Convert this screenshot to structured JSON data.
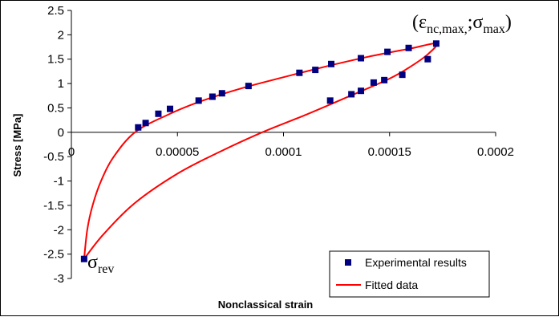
{
  "chart_data": {
    "type": "scatter",
    "xlabel": "Nonclassical strain",
    "ylabel": "Stress [MPa]",
    "xlim": [
      0,
      0.0002
    ],
    "ylim": [
      -3,
      2.5
    ],
    "x_ticks": [
      "0",
      "0.00005",
      "0.0001",
      "0.00015",
      "0.0002"
    ],
    "y_ticks": [
      "2.5",
      "2",
      "1.5",
      "1",
      "0.5",
      "0",
      "-0.5",
      "-1",
      "-1.5",
      "-2",
      "-2.5",
      "-3"
    ],
    "grid": false,
    "legend": "bottom-right",
    "colors": {
      "experimental": "#000080",
      "fitted": "#ff0000"
    },
    "series": [
      {
        "name": "Experimental results",
        "kind": "scatter",
        "points": [
          [
            3.15e-05,
            0.1
          ],
          [
            3.5e-05,
            0.19
          ],
          [
            4.1e-05,
            0.38
          ],
          [
            4.65e-05,
            0.48
          ],
          [
            6e-05,
            0.65
          ],
          [
            6.65e-05,
            0.73
          ],
          [
            7.1e-05,
            0.8
          ],
          [
            8.35e-05,
            0.95
          ],
          [
            0.0001075,
            1.22
          ],
          [
            0.000115,
            1.28
          ],
          [
            0.0001225,
            1.4
          ],
          [
            0.0001365,
            1.52
          ],
          [
            0.000149,
            1.65
          ],
          [
            0.000159,
            1.73
          ],
          [
            0.000172,
            1.82
          ],
          [
            0.000168,
            1.5
          ],
          [
            0.000156,
            1.18
          ],
          [
            0.0001475,
            1.07
          ],
          [
            0.0001425,
            1.02
          ],
          [
            0.0001365,
            0.85
          ],
          [
            0.000132,
            0.78
          ],
          [
            0.000122,
            0.65
          ],
          [
            6e-06,
            -2.6
          ]
        ]
      },
      {
        "name": "Fitted data",
        "kind": "line",
        "points": [
          [
            6e-06,
            -2.6
          ],
          [
            7.5e-06,
            -2.0
          ],
          [
            1e-05,
            -1.5
          ],
          [
            1.4e-05,
            -1.0
          ],
          [
            2e-05,
            -0.5
          ],
          [
            3e-05,
            0.0
          ],
          [
            4.5e-05,
            0.35
          ],
          [
            6e-05,
            0.62
          ],
          [
            8e-05,
            0.9
          ],
          [
            0.0001,
            1.13
          ],
          [
            0.00012,
            1.35
          ],
          [
            0.00014,
            1.55
          ],
          [
            0.00016,
            1.72
          ],
          [
            0.000172,
            1.82
          ],
          [
            0.000168,
            1.6
          ],
          [
            0.00016,
            1.35
          ],
          [
            0.00015,
            1.1
          ],
          [
            0.00013,
            0.72
          ],
          [
            0.00011,
            0.35
          ],
          [
            9e-05,
            0.0
          ],
          [
            7e-05,
            -0.4
          ],
          [
            5e-05,
            -0.85
          ],
          [
            3e-05,
            -1.45
          ],
          [
            1.5e-05,
            -2.1
          ],
          [
            6e-06,
            -2.6
          ]
        ]
      }
    ],
    "annotations": [
      {
        "id": "max",
        "main": "(ε",
        "sub1": "nc,max,",
        "mid": ";σ",
        "sub2": "max",
        "end": ")"
      },
      {
        "id": "rev",
        "main": "σ",
        "sub": "rev"
      }
    ]
  }
}
